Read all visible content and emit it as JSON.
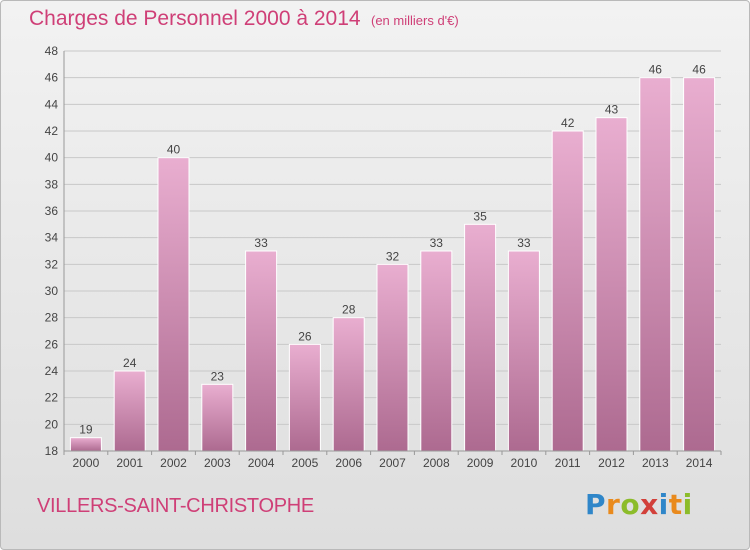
{
  "header": {
    "title": "Charges de Personnel 2000 à 2014",
    "subtitle": "(en milliers d'€)"
  },
  "footer": {
    "location": "VILLERS-SAINT-CHRISTOPHE",
    "logo_letters": [
      "P",
      "r",
      "o",
      "x",
      "i",
      "t",
      "i"
    ],
    "logo_colors": [
      "#2f86c9",
      "#e98a1d",
      "#8cbc2a",
      "#d2403a",
      "#2f86c9",
      "#e98a1d",
      "#8cbc2a"
    ]
  },
  "colors": {
    "bar_light": "#e9aed0",
    "bar_dark": "#ad6a90",
    "title": "#cf3f77"
  },
  "chart_data": {
    "type": "bar",
    "title": "Charges de Personnel 2000 à 2014",
    "subtitle": "(en milliers d'€)",
    "categories": [
      "2000",
      "2001",
      "2002",
      "2003",
      "2004",
      "2005",
      "2006",
      "2007",
      "2008",
      "2009",
      "2010",
      "2011",
      "2012",
      "2013",
      "2014"
    ],
    "values": [
      19,
      24,
      40,
      23,
      33,
      26,
      28,
      32,
      33,
      35,
      33,
      42,
      43,
      46,
      46
    ],
    "ylim": [
      18,
      48
    ],
    "yticks": [
      18,
      20,
      22,
      24,
      26,
      28,
      30,
      32,
      34,
      36,
      38,
      40,
      42,
      44,
      46,
      48
    ],
    "grid": true,
    "data_labels": true
  }
}
